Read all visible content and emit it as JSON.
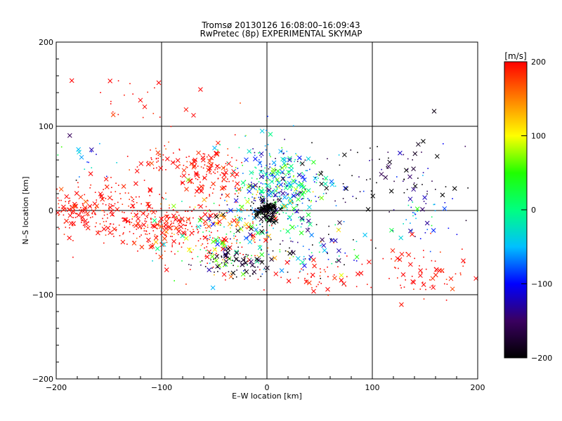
{
  "chart_data": {
    "type": "scatter",
    "title": "Tromsø 20130126 16:08:00–16:09:43",
    "subtitle": "RwPretec (8p) EXPERIMENTAL SKYMAP",
    "xlabel": "E–W location [km]",
    "ylabel": "N–S location [km]",
    "xlim": [
      -200,
      200
    ],
    "ylim": [
      -200,
      200
    ],
    "xticks": [
      -200,
      -100,
      0,
      100,
      200
    ],
    "yticks": [
      -200,
      -100,
      0,
      100,
      200
    ],
    "grid": "at ±100 and 0 km",
    "markers": [
      "small dot",
      "cross x"
    ],
    "colorbar": {
      "label": "[m/s]",
      "range": [
        -200,
        200
      ],
      "ticks": [
        200,
        100,
        0,
        -100,
        -200
      ],
      "colormap": [
        "#000000",
        "#3a0060",
        "#0000ff",
        "#00c0ff",
        "#00ff80",
        "#20ff00",
        "#ffff00",
        "#ff8000",
        "#ff0000"
      ]
    },
    "clusters": [
      {
        "center": [
          -160,
          0
        ],
        "spread": [
          35,
          15
        ],
        "count": 260,
        "velocity": 200,
        "vspread": 15
      },
      {
        "center": [
          -95,
          -20
        ],
        "spread": [
          30,
          15
        ],
        "count": 220,
        "velocity": 200,
        "vspread": 20
      },
      {
        "center": [
          -55,
          45
        ],
        "spread": [
          15,
          15
        ],
        "count": 140,
        "velocity": 200,
        "vspread": 20
      },
      {
        "center": [
          -100,
          60
        ],
        "spread": [
          15,
          8
        ],
        "count": 40,
        "velocity": 200,
        "vspread": 20
      },
      {
        "center": [
          -40,
          -30
        ],
        "spread": [
          30,
          25
        ],
        "count": 220,
        "velocity": 90,
        "vspread": 120
      },
      {
        "center": [
          -30,
          -60
        ],
        "spread": [
          20,
          8
        ],
        "count": 90,
        "velocity": -180,
        "vspread": 30
      },
      {
        "center": [
          10,
          25
        ],
        "spread": [
          22,
          25
        ],
        "count": 420,
        "velocity": -40,
        "vspread": 80
      },
      {
        "center": [
          0,
          0
        ],
        "spread": [
          6,
          6
        ],
        "count": 160,
        "velocity": -200,
        "vspread": 15
      },
      {
        "center": [
          35,
          -45
        ],
        "spread": [
          30,
          15
        ],
        "count": 90,
        "velocity": -90,
        "vspread": 80
      },
      {
        "center": [
          120,
          40
        ],
        "spread": [
          35,
          25
        ],
        "count": 90,
        "velocity": -170,
        "vspread": 50
      },
      {
        "center": [
          150,
          -5
        ],
        "spread": [
          20,
          15
        ],
        "count": 40,
        "velocity": -80,
        "vspread": 60
      },
      {
        "center": [
          140,
          -75
        ],
        "spread": [
          40,
          20
        ],
        "count": 80,
        "velocity": 200,
        "vspread": 15
      },
      {
        "center": [
          40,
          -80
        ],
        "spread": [
          30,
          10
        ],
        "count": 50,
        "velocity": 200,
        "vspread": 20
      },
      {
        "center": [
          -120,
          130
        ],
        "spread": [
          30,
          20
        ],
        "count": 25,
        "velocity": 200,
        "vspread": 15
      },
      {
        "center": [
          -170,
          60
        ],
        "spread": [
          15,
          10
        ],
        "count": 18,
        "velocity": -60,
        "vspread": 60
      }
    ]
  }
}
